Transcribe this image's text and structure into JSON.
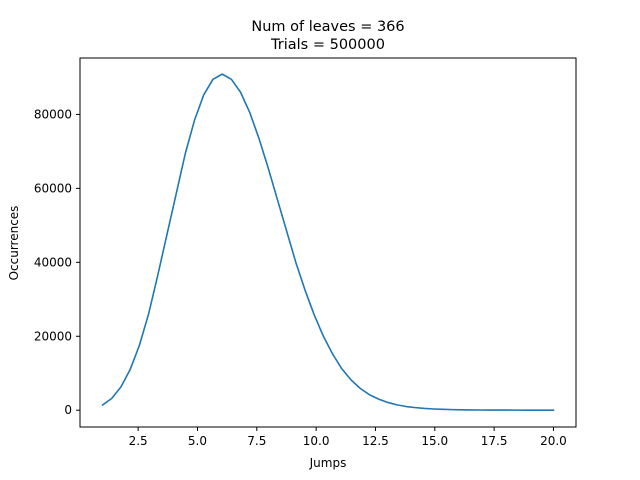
{
  "chart_data": {
    "type": "line",
    "title": "Num of leaves = 366",
    "subtitle": "Trials = 500000",
    "xlabel": "Jumps",
    "ylabel": "Occurrences",
    "xlim": [
      0.05,
      20.95
    ],
    "ylim": [
      -4540,
      95260
    ],
    "xticks": [
      2.5,
      5.0,
      7.5,
      10.0,
      12.5,
      15.0,
      17.5,
      20.0
    ],
    "xtick_labels": [
      "2.5",
      "5.0",
      "7.5",
      "10.0",
      "12.5",
      "15.0",
      "17.5",
      "20.0"
    ],
    "yticks": [
      0,
      20000,
      40000,
      60000,
      80000
    ],
    "ytick_labels": [
      "0",
      "20000",
      "40000",
      "60000",
      "80000"
    ],
    "grid": false,
    "legend": "none",
    "colors": {
      "line": "#1f77b4"
    },
    "series": [
      {
        "x": [
          1.0,
          1.388,
          1.776,
          2.163,
          2.551,
          2.939,
          3.327,
          3.714,
          4.102,
          4.49,
          4.878,
          5.265,
          5.653,
          6.041,
          6.429,
          6.816,
          7.204,
          7.592,
          7.98,
          8.367,
          8.755,
          9.143,
          9.531,
          9.918,
          10.306,
          10.694,
          11.082,
          11.469,
          11.857,
          12.245,
          12.633,
          13.02,
          13.408,
          13.796,
          14.184,
          14.571,
          14.959,
          15.347,
          15.735,
          16.122,
          16.51,
          16.898,
          17.286,
          17.673,
          18.061,
          18.449,
          18.837,
          19.224,
          19.612,
          20.0
        ],
        "y": [
          1400,
          3200,
          6300,
          11000,
          17500,
          26000,
          36500,
          47500,
          58500,
          69500,
          78500,
          85300,
          89500,
          90900,
          89500,
          86000,
          80500,
          73500,
          65500,
          57000,
          48500,
          40000,
          32500,
          25800,
          20000,
          15200,
          11200,
          8200,
          5900,
          4200,
          3000,
          2100,
          1450,
          1000,
          700,
          480,
          330,
          230,
          160,
          110,
          80,
          60,
          45,
          35,
          28,
          22,
          18,
          15,
          12,
          10
        ]
      }
    ]
  }
}
